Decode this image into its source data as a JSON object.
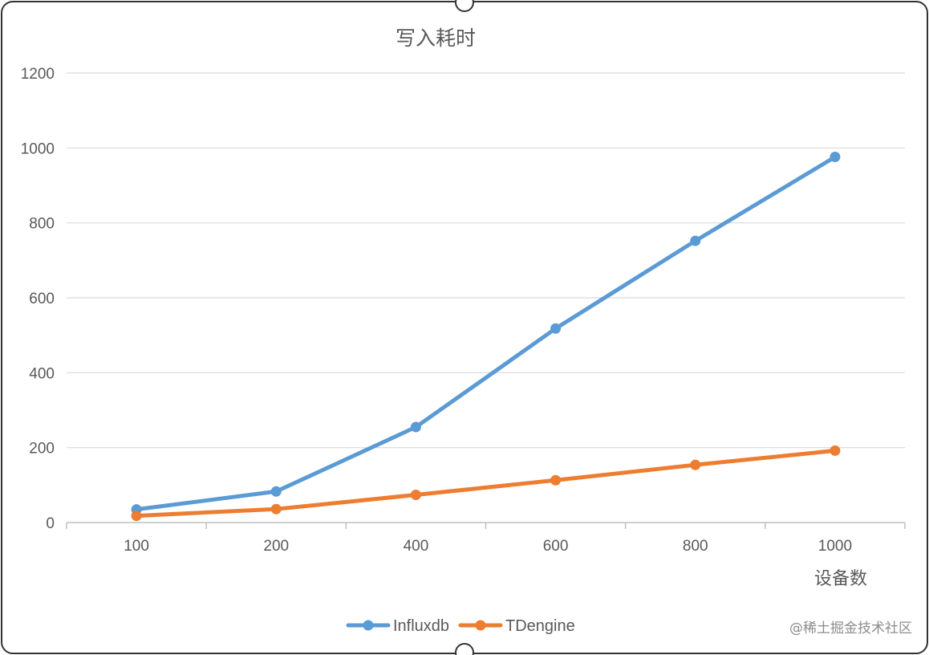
{
  "chart_data": {
    "type": "line",
    "title": "写入耗时",
    "xlabel": "设备数",
    "ylabel": "",
    "categories": [
      "100",
      "200",
      "400",
      "600",
      "800",
      "1000"
    ],
    "ylim": [
      0,
      1200
    ],
    "yticks": [
      "0",
      "200",
      "400",
      "600",
      "800",
      "1000",
      "1200"
    ],
    "grid": true,
    "legend_position": "bottom",
    "series": [
      {
        "name": "Influxdb",
        "color": "#5b9bd5",
        "values": [
          35,
          83,
          255,
          518,
          752,
          976
        ]
      },
      {
        "name": "TDengine",
        "color": "#ed7d31",
        "values": [
          18,
          36,
          74,
          113,
          154,
          192
        ]
      }
    ]
  },
  "watermark": "@稀土掘金技术社区"
}
